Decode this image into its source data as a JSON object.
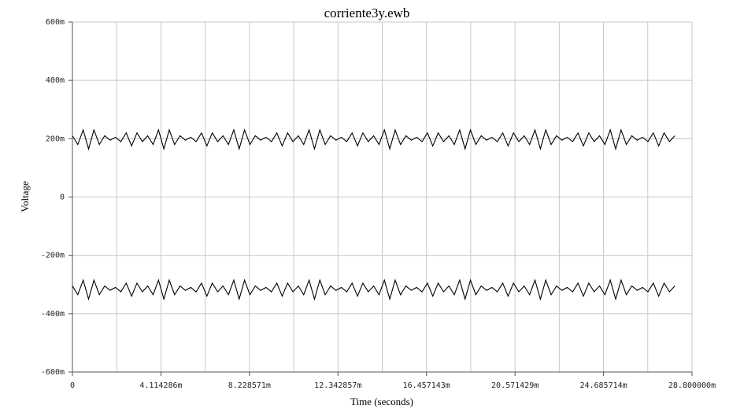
{
  "chart_data": {
    "type": "line",
    "title": "corriente3y.ewb",
    "x_label": "Time (seconds)",
    "y_label": "Voltage",
    "x": [
      0,
      0.00025,
      0.0005,
      0.00075,
      0.001,
      0.00125,
      0.0015,
      0.00175,
      0.002,
      0.00225,
      0.0025,
      0.00275,
      0.003,
      0.00325,
      0.0035,
      0.00375,
      0.004,
      0.00425,
      0.0045,
      0.00475,
      0.005,
      0.00525,
      0.0055,
      0.00575,
      0.006,
      0.00625,
      0.0065,
      0.00675,
      0.007,
      0.00725,
      0.0075,
      0.00775,
      0.008,
      0.00825,
      0.0085,
      0.00875,
      0.009,
      0.00925,
      0.0095,
      0.00975,
      0.01,
      0.01025,
      0.0105,
      0.01075,
      0.011,
      0.01125,
      0.0115,
      0.01175,
      0.012,
      0.01225,
      0.0125,
      0.01275,
      0.013,
      0.01325,
      0.0135,
      0.01375,
      0.014,
      0.01425,
      0.0145,
      0.01475,
      0.015,
      0.01525,
      0.0155,
      0.01575,
      0.016,
      0.01625,
      0.0165,
      0.01675,
      0.017,
      0.01725,
      0.0175,
      0.01775,
      0.018,
      0.01825,
      0.0185,
      0.01875,
      0.019,
      0.01925,
      0.0195,
      0.01975,
      0.02,
      0.02025,
      0.0205,
      0.02075,
      0.021,
      0.02125,
      0.0215,
      0.02175,
      0.022,
      0.02225,
      0.0225,
      0.02275,
      0.023,
      0.02325,
      0.0235,
      0.02375,
      0.024,
      0.02425,
      0.0245,
      0.02475,
      0.025,
      0.02525,
      0.0255,
      0.02575,
      0.026,
      0.02625,
      0.0265,
      0.02675,
      0.027,
      0.02725,
      0.0275,
      0.02775,
      0.028
    ],
    "series": [
      {
        "color": "#000000",
        "values": [
          0.21,
          0.18,
          0.23,
          0.165,
          0.23,
          0.18,
          0.21,
          0.195,
          0.205,
          0.19,
          0.22,
          0.175,
          0.22,
          0.19,
          0.21,
          0.18,
          0.23,
          0.165,
          0.23,
          0.18,
          0.21,
          0.195,
          0.205,
          0.19,
          0.22,
          0.175,
          0.22,
          0.19,
          0.21,
          0.18,
          0.23,
          0.165,
          0.23,
          0.18,
          0.21,
          0.195,
          0.205,
          0.19,
          0.22,
          0.175,
          0.22,
          0.19,
          0.21,
          0.18,
          0.23,
          0.165,
          0.23,
          0.18,
          0.21,
          0.195,
          0.205,
          0.19,
          0.22,
          0.175,
          0.22,
          0.19,
          0.21,
          0.18,
          0.23,
          0.165,
          0.23,
          0.18,
          0.21,
          0.195,
          0.205,
          0.19,
          0.22,
          0.175,
          0.22,
          0.19,
          0.21,
          0.18,
          0.23,
          0.165,
          0.23,
          0.18,
          0.21,
          0.195,
          0.205,
          0.19,
          0.22,
          0.175,
          0.22,
          0.19,
          0.21,
          0.18,
          0.23,
          0.165,
          0.23,
          0.18,
          0.21,
          0.195,
          0.205,
          0.19,
          0.22,
          0.175,
          0.22,
          0.19,
          0.21,
          0.18,
          0.23,
          0.165,
          0.23,
          0.18,
          0.21,
          0.195,
          0.205,
          0.19,
          0.22,
          0.175,
          0.22,
          0.19,
          0.21
        ]
      },
      {
        "color": "#000000",
        "values": [
          -0.305,
          -0.335,
          -0.285,
          -0.35,
          -0.285,
          -0.335,
          -0.305,
          -0.32,
          -0.31,
          -0.325,
          -0.295,
          -0.34,
          -0.295,
          -0.325,
          -0.305,
          -0.335,
          -0.285,
          -0.35,
          -0.285,
          -0.335,
          -0.305,
          -0.32,
          -0.31,
          -0.325,
          -0.295,
          -0.34,
          -0.295,
          -0.325,
          -0.305,
          -0.335,
          -0.285,
          -0.35,
          -0.285,
          -0.335,
          -0.305,
          -0.32,
          -0.31,
          -0.325,
          -0.295,
          -0.34,
          -0.295,
          -0.325,
          -0.305,
          -0.335,
          -0.285,
          -0.35,
          -0.285,
          -0.335,
          -0.305,
          -0.32,
          -0.31,
          -0.325,
          -0.295,
          -0.34,
          -0.295,
          -0.325,
          -0.305,
          -0.335,
          -0.285,
          -0.35,
          -0.285,
          -0.335,
          -0.305,
          -0.32,
          -0.31,
          -0.325,
          -0.295,
          -0.34,
          -0.295,
          -0.325,
          -0.305,
          -0.335,
          -0.285,
          -0.35,
          -0.285,
          -0.335,
          -0.305,
          -0.32,
          -0.31,
          -0.325,
          -0.295,
          -0.34,
          -0.295,
          -0.325,
          -0.305,
          -0.335,
          -0.285,
          -0.35,
          -0.285,
          -0.335,
          -0.305,
          -0.32,
          -0.31,
          -0.325,
          -0.295,
          -0.34,
          -0.295,
          -0.325,
          -0.305,
          -0.335,
          -0.285,
          -0.35,
          -0.285,
          -0.335,
          -0.305,
          -0.32,
          -0.31,
          -0.325,
          -0.295,
          -0.34,
          -0.295,
          -0.325,
          -0.305
        ]
      }
    ],
    "xlim": [
      0,
      0.0288
    ],
    "xticks": [
      0,
      {
        "value": 0.004114286,
        "label": "4.114286m"
      },
      {
        "value": 0.008228571,
        "label": "8.228571m"
      },
      {
        "value": 0.012342857,
        "label": "12.342857m"
      },
      {
        "value": 0.016457143,
        "label": "16.457143m"
      },
      {
        "value": 0.020571429,
        "label": "20.571429m"
      },
      {
        "value": 0.024685714,
        "label": "24.685714m"
      },
      {
        "value": 0.0288,
        "label": "28.800000m"
      }
    ],
    "ylim": [
      -0.6,
      0.6
    ],
    "yticks": [
      {
        "value": -0.6,
        "label": "-600m"
      },
      {
        "value": -0.4,
        "label": "-400m"
      },
      {
        "value": -0.2,
        "label": "-200m"
      },
      0,
      {
        "value": 0.2,
        "label": "200m"
      },
      {
        "value": 0.4,
        "label": "400m"
      },
      {
        "value": 0.6,
        "label": "600m"
      }
    ],
    "grid": true
  }
}
